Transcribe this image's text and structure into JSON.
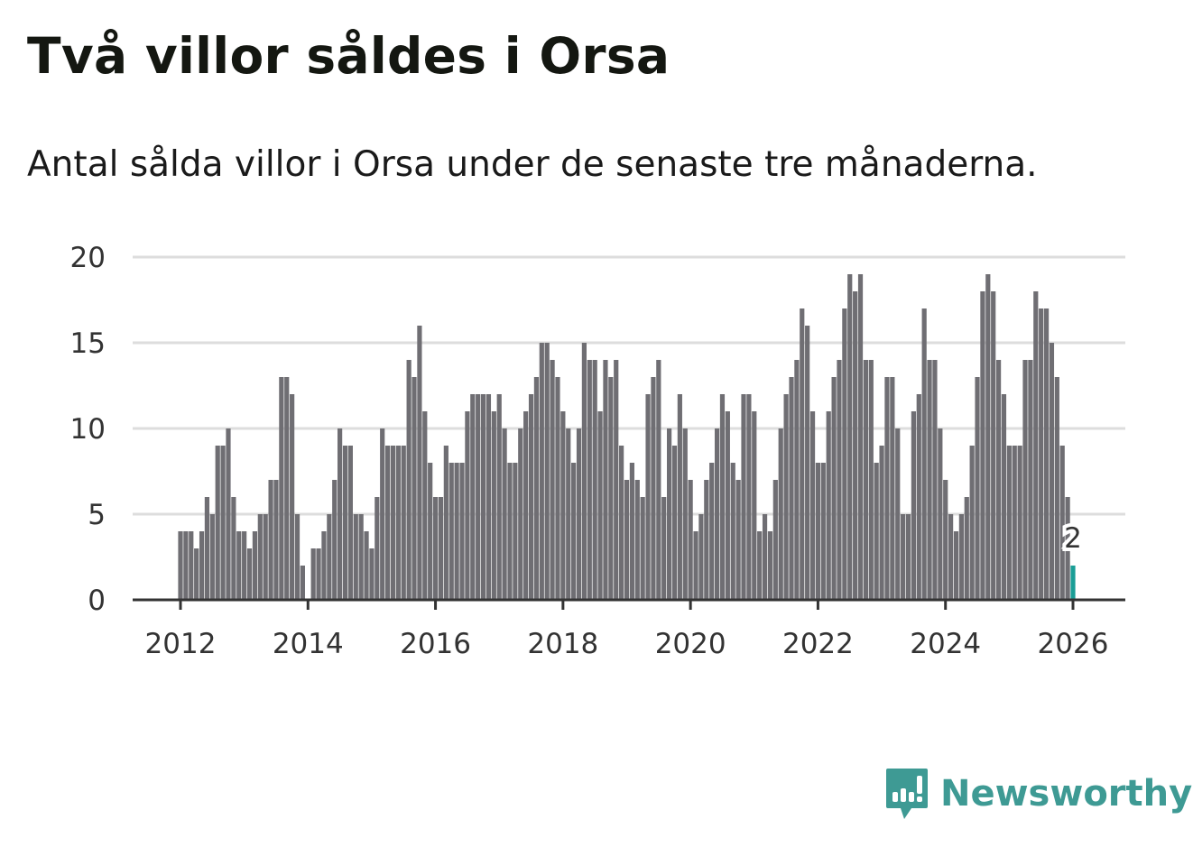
{
  "title": "Två villor såldes i Orsa",
  "subtitle": "Antal sålda villor i Orsa under de senaste tre månaderna.",
  "brand": "Newsworthy",
  "colors": {
    "bar": "#6f6e73",
    "highlight": "#1a9e96",
    "grid": "#dddddd",
    "axis": "#333333",
    "brand": "#3e9a94"
  },
  "chart_data": {
    "type": "bar",
    "title": "Två villor såldes i Orsa",
    "subtitle": "Antal sålda villor i Orsa under de senaste tre månaderna.",
    "xlabel": "",
    "ylabel": "",
    "start": "2012-01",
    "frequency": "monthly",
    "ylim": [
      0,
      20
    ],
    "yticks": [
      "0",
      "5",
      "10",
      "15",
      "20"
    ],
    "xticks": [
      "2012",
      "2014",
      "2016",
      "2018",
      "2020",
      "2022",
      "2024",
      "2026"
    ],
    "grid": true,
    "values": [
      4,
      4,
      4,
      3,
      4,
      6,
      5,
      9,
      9,
      10,
      6,
      4,
      4,
      3,
      4,
      5,
      5,
      7,
      7,
      13,
      13,
      12,
      5,
      2,
      0,
      3,
      3,
      4,
      5,
      7,
      10,
      9,
      9,
      5,
      5,
      4,
      3,
      6,
      10,
      9,
      9,
      9,
      9,
      14,
      13,
      16,
      11,
      8,
      6,
      6,
      9,
      8,
      8,
      8,
      11,
      12,
      12,
      12,
      12,
      11,
      12,
      10,
      8,
      8,
      10,
      11,
      12,
      13,
      15,
      15,
      14,
      13,
      11,
      10,
      8,
      10,
      15,
      14,
      14,
      11,
      14,
      13,
      14,
      9,
      7,
      8,
      7,
      6,
      12,
      13,
      14,
      6,
      10,
      9,
      12,
      10,
      7,
      4,
      5,
      7,
      8,
      10,
      12,
      11,
      8,
      7,
      12,
      12,
      11,
      4,
      5,
      4,
      7,
      10,
      12,
      13,
      14,
      17,
      16,
      11,
      8,
      8,
      11,
      13,
      14,
      17,
      19,
      18,
      19,
      14,
      14,
      8,
      9,
      13,
      13,
      10,
      5,
      5,
      11,
      12,
      17,
      14,
      14,
      10,
      7,
      5,
      4,
      5,
      6,
      9,
      13,
      18,
      19,
      18,
      14,
      12,
      9,
      9,
      9,
      14,
      14,
      18,
      17,
      17,
      15,
      13,
      9,
      6,
      2
    ],
    "highlight_last": true,
    "annotation": "2"
  }
}
